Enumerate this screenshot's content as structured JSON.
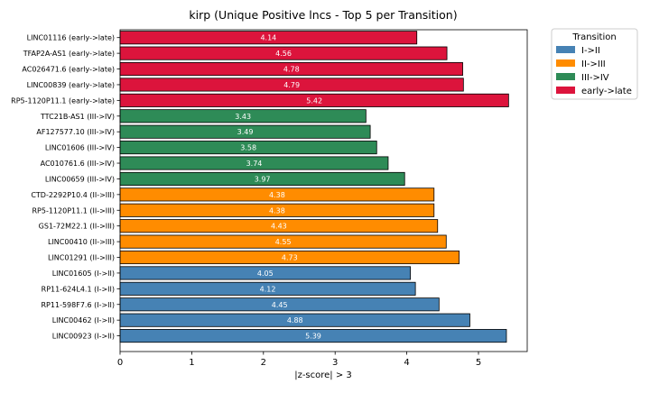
{
  "chart_data": {
    "type": "bar",
    "orientation": "horizontal",
    "title": "kirp (Unique Positive lncs - Top 5 per Transition)",
    "xlabel": "|z-score| > 3",
    "ylabel": "",
    "xlim": [
      0,
      5.68
    ],
    "xticks": [
      0,
      1,
      2,
      3,
      4,
      5
    ],
    "grid": false,
    "legend": {
      "title": "Transition",
      "placement": "outside upper right",
      "entries": [
        {
          "name": "I->II",
          "color": "#4682b4"
        },
        {
          "name": "II->III",
          "color": "#ff8c00"
        },
        {
          "name": "III->IV",
          "color": "#2e8b57"
        },
        {
          "name": "early->late",
          "color": "#dc143c"
        }
      ]
    },
    "bars": [
      {
        "label": "LINC01116 (early->late)",
        "value": 4.14,
        "value_label": "4.14",
        "series": "early->late"
      },
      {
        "label": "TFAP2A-AS1 (early->late)",
        "value": 4.56,
        "value_label": "4.56",
        "series": "early->late"
      },
      {
        "label": "AC026471.6 (early->late)",
        "value": 4.78,
        "value_label": "4.78",
        "series": "early->late"
      },
      {
        "label": "LINC00839 (early->late)",
        "value": 4.79,
        "value_label": "4.79",
        "series": "early->late"
      },
      {
        "label": "RP5-1120P11.1 (early->late)",
        "value": 5.42,
        "value_label": "5.42",
        "series": "early->late"
      },
      {
        "label": "TTC21B-AS1 (III->IV)",
        "value": 3.43,
        "value_label": "3.43",
        "series": "III->IV"
      },
      {
        "label": "AF127577.10 (III->IV)",
        "value": 3.49,
        "value_label": "3.49",
        "series": "III->IV"
      },
      {
        "label": "LINC01606 (III->IV)",
        "value": 3.58,
        "value_label": "3.58",
        "series": "III->IV"
      },
      {
        "label": "AC010761.6 (III->IV)",
        "value": 3.74,
        "value_label": "3.74",
        "series": "III->IV"
      },
      {
        "label": "LINC00659 (III->IV)",
        "value": 3.97,
        "value_label": "3.97",
        "series": "III->IV"
      },
      {
        "label": "CTD-2292P10.4 (II->III)",
        "value": 4.38,
        "value_label": "4.38",
        "series": "II->III"
      },
      {
        "label": "RP5-1120P11.1 (II->III)",
        "value": 4.38,
        "value_label": "4.38",
        "series": "II->III"
      },
      {
        "label": "GS1-72M22.1 (II->III)",
        "value": 4.43,
        "value_label": "4.43",
        "series": "II->III"
      },
      {
        "label": "LINC00410 (II->III)",
        "value": 4.55,
        "value_label": "4.55",
        "series": "II->III"
      },
      {
        "label": "LINC01291 (II->III)",
        "value": 4.73,
        "value_label": "4.73",
        "series": "II->III"
      },
      {
        "label": "LINC01605 (I->II)",
        "value": 4.05,
        "value_label": "4.05",
        "series": "I->II"
      },
      {
        "label": "RP11-624L4.1 (I->II)",
        "value": 4.12,
        "value_label": "4.12",
        "series": "I->II"
      },
      {
        "label": "RP11-598F7.6 (I->II)",
        "value": 4.45,
        "value_label": "4.45",
        "series": "I->II"
      },
      {
        "label": "LINC00462 (I->II)",
        "value": 4.88,
        "value_label": "4.88",
        "series": "I->II"
      },
      {
        "label": "LINC00923 (I->II)",
        "value": 5.39,
        "value_label": "5.39",
        "series": "I->II"
      }
    ]
  }
}
